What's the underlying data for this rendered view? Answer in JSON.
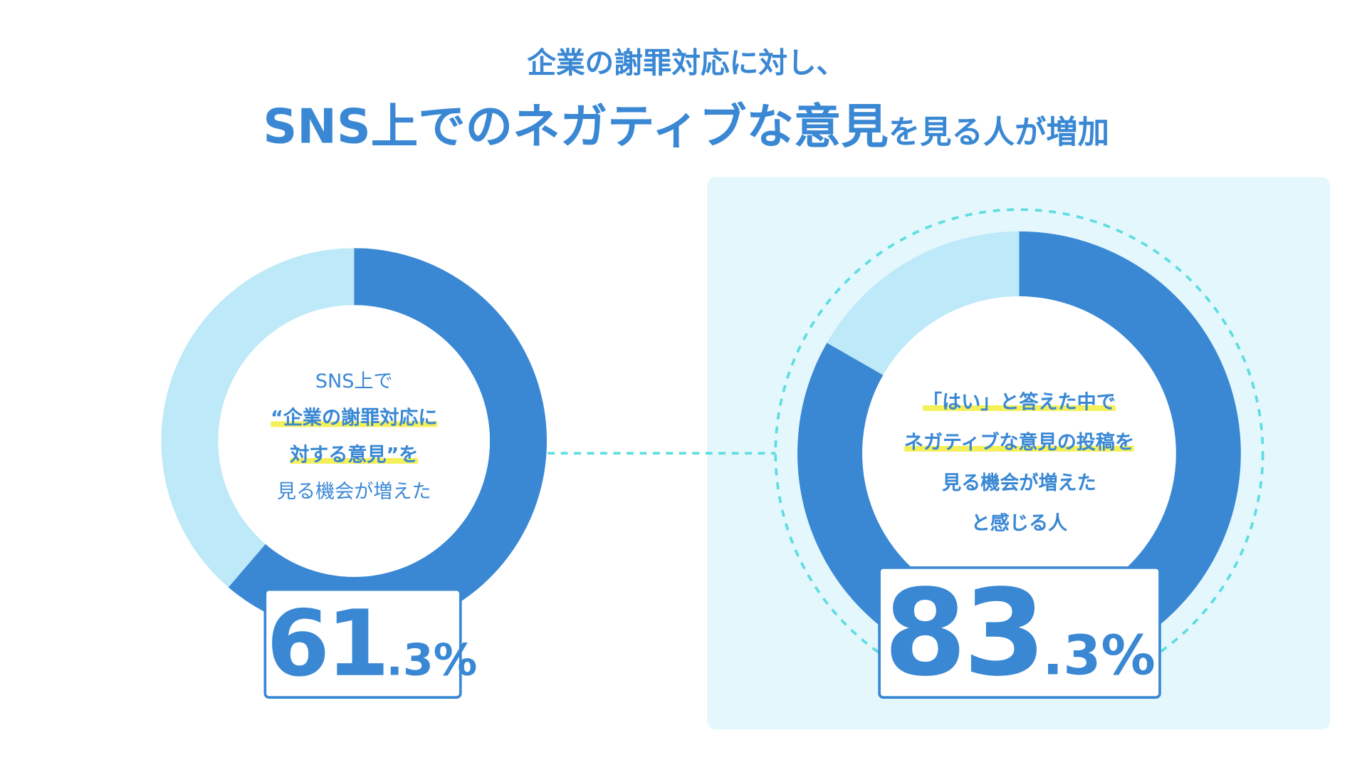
{
  "title": {
    "line1": "企業の謝罪対応に対し、",
    "line2_emphasis": "SNS上でのネガティブな意見",
    "line2_rest": "を見る人が増加"
  },
  "colors": {
    "primary": "#3a88d4",
    "secondary": "#bde9f9",
    "highlight": "#f4f05a",
    "dashed": "#5ddde0",
    "panel": "#e3f7fd"
  },
  "chart_data": [
    {
      "type": "pie",
      "style": "donut",
      "values": [
        61.3,
        38.7
      ],
      "label_lines": [
        "SNS上で",
        "“企業の謝罪対応に",
        "対する意見”を",
        "見る機会が増えた"
      ],
      "value_int": "61",
      "value_dec": ".3%"
    },
    {
      "type": "pie",
      "style": "donut",
      "values": [
        83.3,
        16.7
      ],
      "label_lines": [
        "「はい」と答えた中で",
        "ネガティブな意見の投稿を",
        "見る機会が増えた",
        "と感じる人"
      ],
      "value_int": "83",
      "value_dec": ".3%"
    }
  ]
}
